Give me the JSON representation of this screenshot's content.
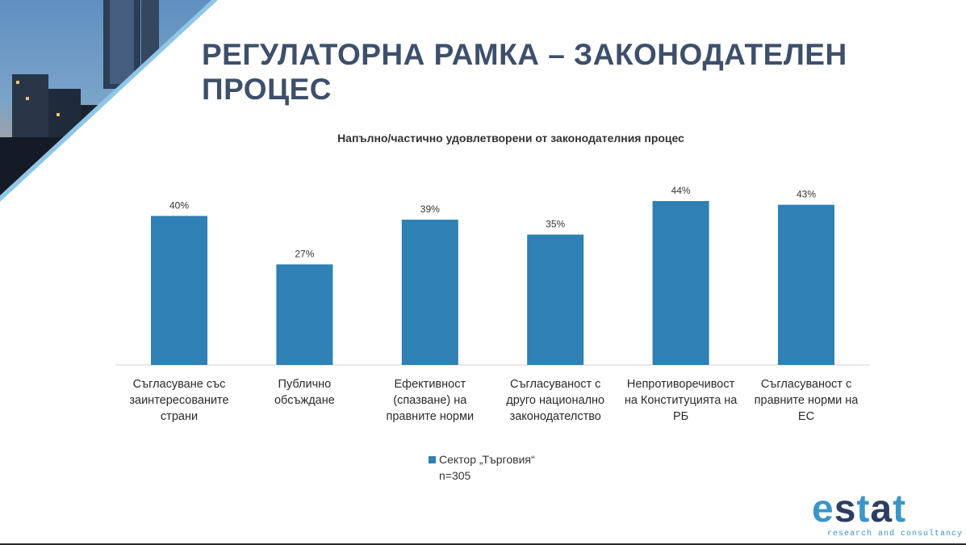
{
  "slide": {
    "title": "РЕГУЛАТОРНА РАМКА – ЗАКОНОДАТЕЛЕН ПРОЦЕС",
    "colors": {
      "title": "#3d4f6b",
      "bar": "#2e80b5",
      "frame": "#8fc6e8"
    }
  },
  "chart_data": {
    "type": "bar",
    "title": "Напълно/частично удовлетворени от законодателния процес",
    "categories": [
      "Съгласуване със заинтересованите страни",
      "Публично обсъждане",
      "Ефективност (спазване) на правните норми",
      "Съгласуваност с друго национално законодателство",
      "Непротиворечивост на Конституцията на РБ",
      "Съгласуваност с правните норми на ЕС"
    ],
    "category_lines": [
      [
        "Съгласуване със",
        "заинтересованите",
        "страни"
      ],
      [
        "Публично",
        "обсъждане"
      ],
      [
        "Ефективност",
        "(спазване) на",
        "правните норми"
      ],
      [
        "Съгласуваност с",
        "друго национално",
        "законодателство"
      ],
      [
        "Непротиворечивост",
        "на Конституцията на",
        "РБ"
      ],
      [
        "Съгласуваност с",
        "правните норми на",
        "ЕС"
      ]
    ],
    "series": [
      {
        "name": "Сектор „Търговия“",
        "values": [
          40,
          27,
          39,
          35,
          44,
          43
        ]
      }
    ],
    "data_labels": [
      "40%",
      "27%",
      "39%",
      "35%",
      "44%",
      "43%"
    ],
    "ylim": [
      0,
      44
    ],
    "grid": false,
    "legend_position": "bottom",
    "legend_note": "n=305"
  },
  "logo": {
    "text": "estat",
    "tagline": "research and consultancy",
    "icon": "estat-logo"
  }
}
